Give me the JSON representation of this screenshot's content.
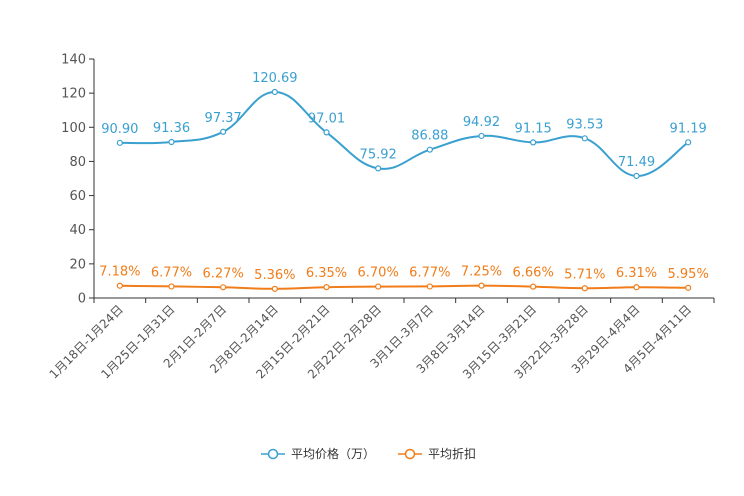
{
  "chart_data": {
    "type": "line",
    "categories": [
      "1月18日-1月24日",
      "1月25日-1月31日",
      "2月1日-2月7日",
      "2月8日-2月14日",
      "2月15日-2月21日",
      "2月22日-2月28日",
      "3月1日-3月7日",
      "3月8日-3月14日",
      "3月15日-3月21日",
      "3月22日-3月28日",
      "3月29日-4月4日",
      "4月5日-4月11日"
    ],
    "series": [
      {
        "name": "平均价格（万）",
        "color": "#3aa0d0",
        "values": [
          90.9,
          91.36,
          97.37,
          120.69,
          97.01,
          75.92,
          86.88,
          94.92,
          91.15,
          93.53,
          71.49,
          91.19
        ],
        "labels": [
          "90.90",
          "91.36",
          "97.37",
          "120.69",
          "97.01",
          "75.92",
          "86.88",
          "94.92",
          "91.15",
          "93.53",
          "71.49",
          "91.19"
        ]
      },
      {
        "name": "平均折扣",
        "color": "#f07d1a",
        "values": [
          7.18,
          6.77,
          6.27,
          5.36,
          6.35,
          6.7,
          6.77,
          7.25,
          6.66,
          5.71,
          6.31,
          5.95
        ],
        "labels": [
          "7.18%",
          "6.77%",
          "6.27%",
          "5.36%",
          "6.35%",
          "6.70%",
          "6.77%",
          "7.25%",
          "6.66%",
          "5.71%",
          "6.31%",
          "5.95%"
        ]
      }
    ],
    "yticks": [
      "0",
      "20",
      "40",
      "60",
      "80",
      "100",
      "120",
      "140"
    ],
    "ylim": [
      0,
      140
    ],
    "legend_position": "bottom"
  }
}
